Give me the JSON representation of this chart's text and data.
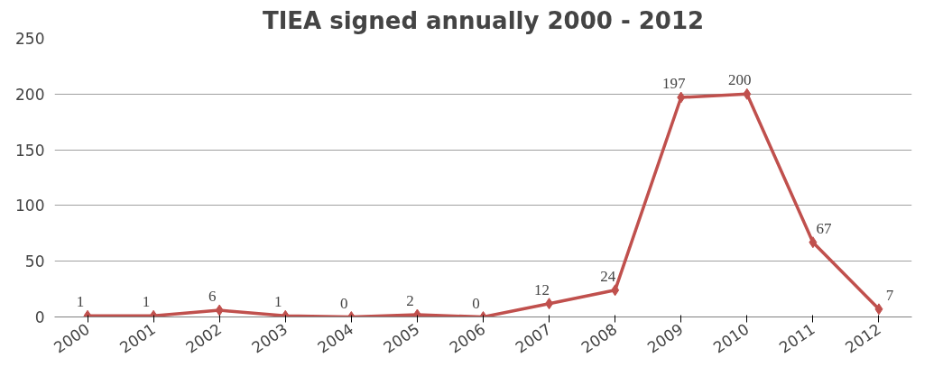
{
  "chart_data": {
    "type": "line",
    "title": "TIEA signed annually 2000 - 2012",
    "categories": [
      "2000",
      "2001",
      "2002",
      "2003",
      "2004",
      "2005",
      "2006",
      "2007",
      "2008",
      "2009",
      "2010",
      "2011",
      "2012"
    ],
    "series": [
      {
        "color": "#c0504d",
        "values": [
          1,
          1,
          6,
          1,
          0,
          2,
          0,
          12,
          24,
          197,
          200,
          67,
          7
        ]
      }
    ],
    "ylim": [
      0,
      250
    ],
    "yticks": [
      0,
      50,
      100,
      150,
      200,
      250
    ],
    "grid": "y",
    "marker": "diamond",
    "data_labels": true
  }
}
